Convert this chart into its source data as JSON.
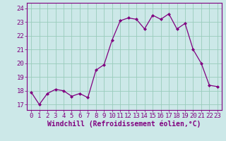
{
  "x": [
    0,
    1,
    2,
    3,
    4,
    5,
    6,
    7,
    8,
    9,
    10,
    11,
    12,
    13,
    14,
    15,
    16,
    17,
    18,
    19,
    20,
    21,
    22,
    23
  ],
  "y": [
    17.9,
    17.0,
    17.8,
    18.1,
    18.0,
    17.6,
    17.8,
    17.5,
    19.5,
    19.9,
    21.7,
    23.1,
    23.3,
    23.2,
    22.5,
    23.5,
    23.2,
    23.6,
    22.5,
    22.9,
    21.0,
    20.0,
    18.4,
    18.3
  ],
  "line_color": "#800080",
  "marker_color": "#800080",
  "bg_color": "#cce8e8",
  "grid_color": "#99ccbb",
  "xlabel": "Windchill (Refroidissement éolien,°C)",
  "ylabel_ticks": [
    17,
    18,
    19,
    20,
    21,
    22,
    23,
    24
  ],
  "xtick_labels": [
    "0",
    "1",
    "2",
    "3",
    "4",
    "5",
    "6",
    "7",
    "8",
    "9",
    "10",
    "11",
    "12",
    "13",
    "14",
    "15",
    "16",
    "17",
    "18",
    "19",
    "20",
    "21",
    "22",
    "23"
  ],
  "ylim": [
    16.6,
    24.4
  ],
  "xlim": [
    -0.5,
    23.5
  ],
  "xlabel_fontsize": 7,
  "tick_fontsize": 6.5,
  "text_color": "#800080"
}
